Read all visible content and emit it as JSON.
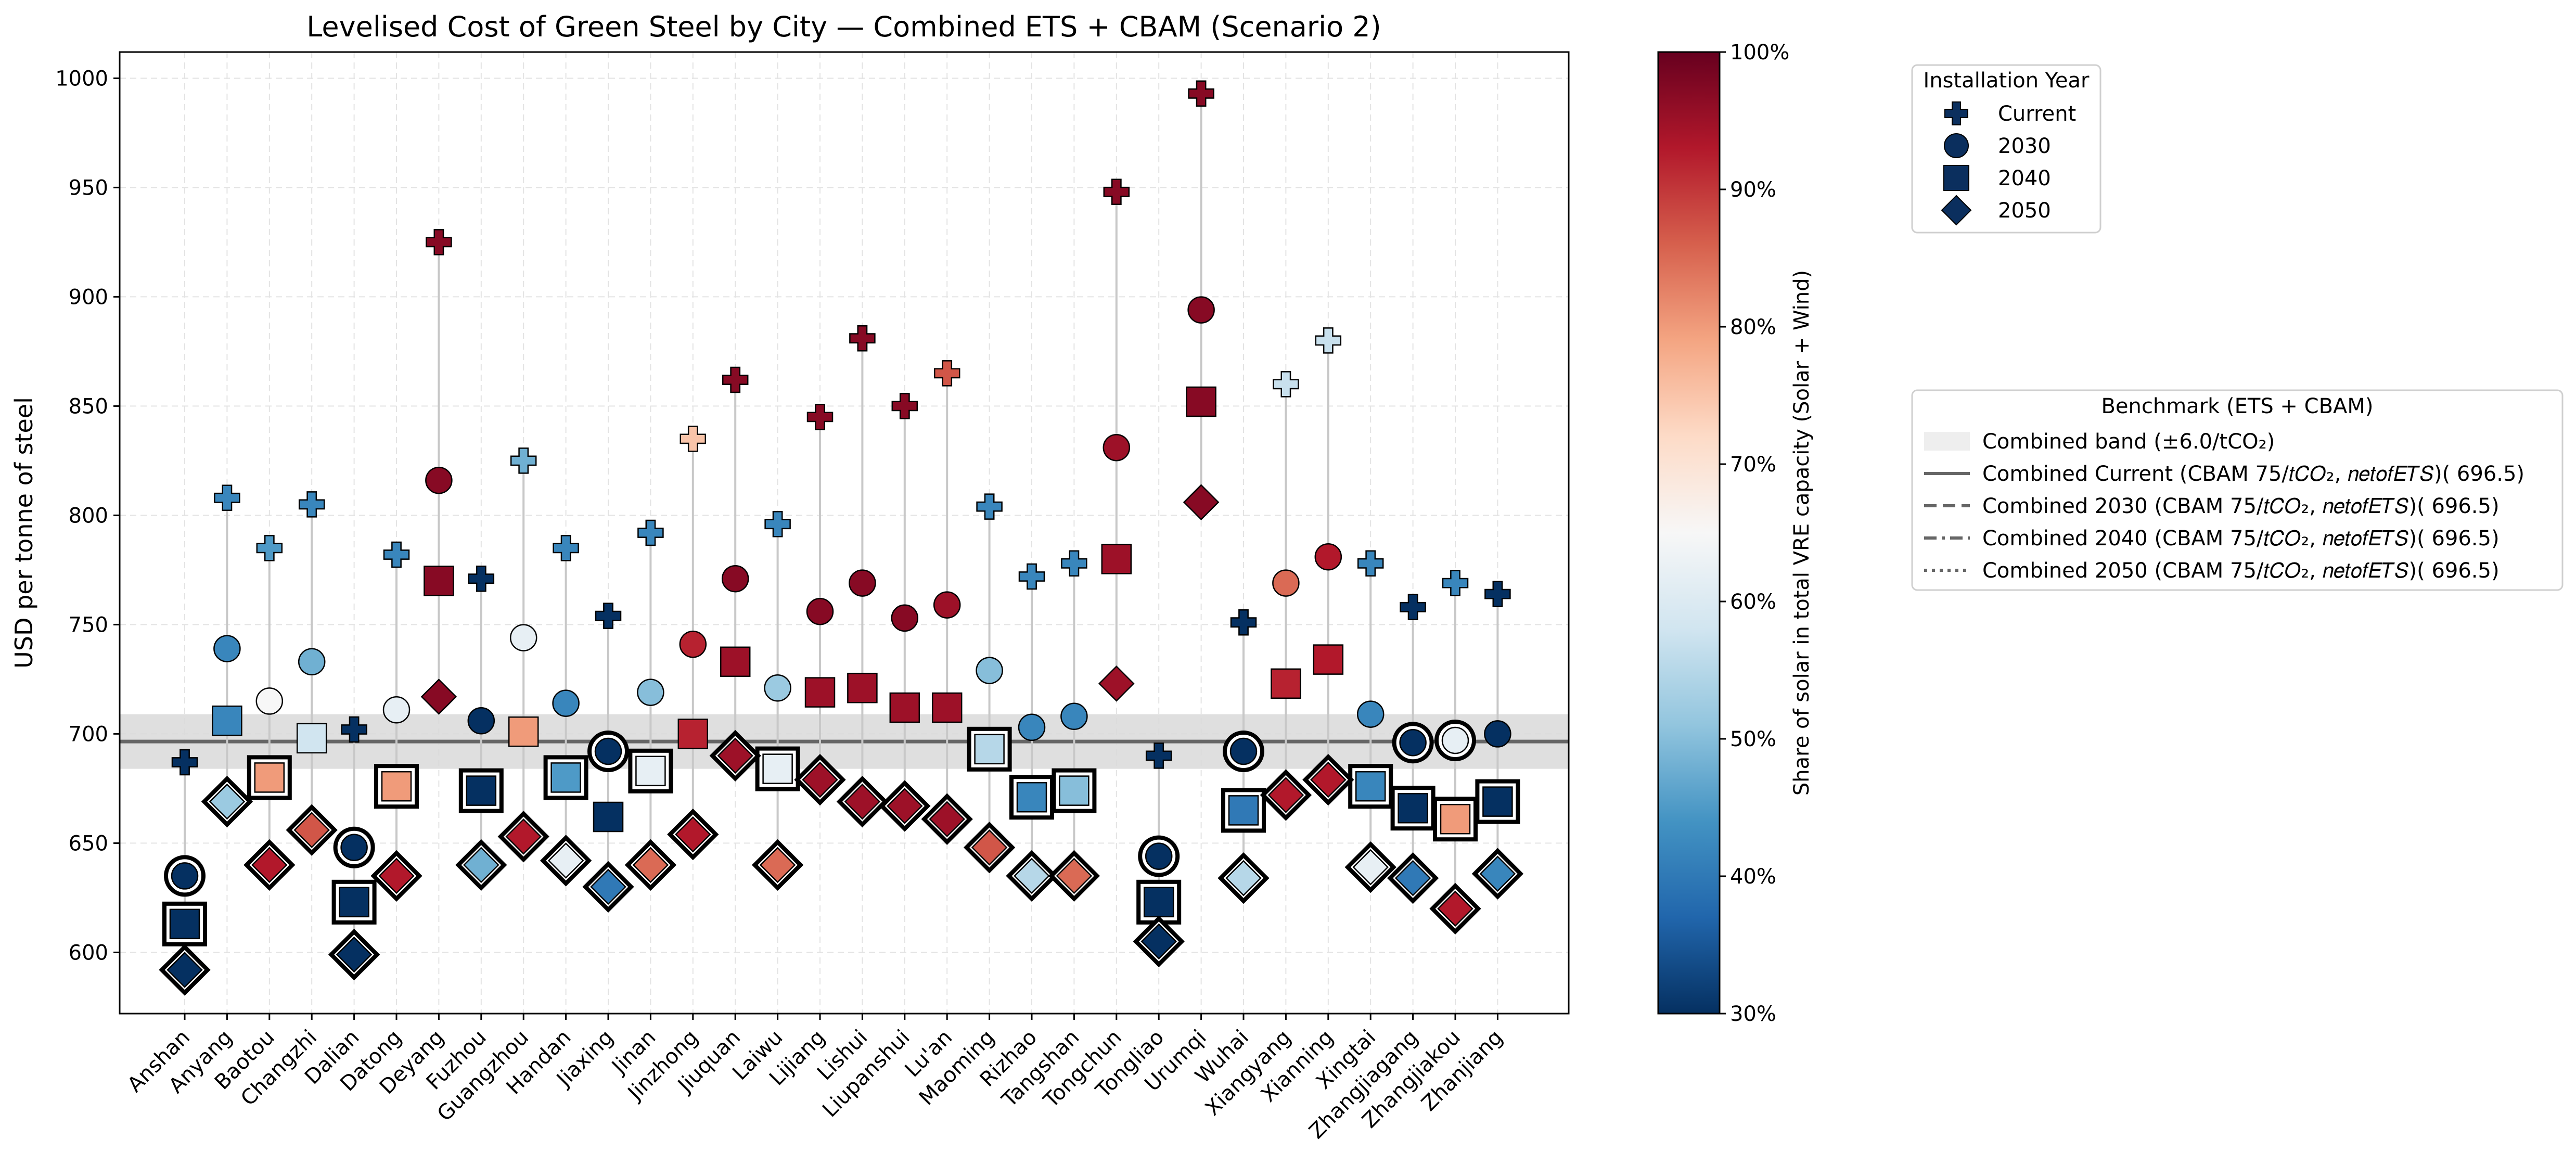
{
  "chart_data": {
    "type": "scatter",
    "title": "Levelised Cost of Green Steel by City — Combined ETS + CBAM (Scenario 2)",
    "xlabel": "",
    "ylabel": "USD per tonne of steel",
    "ylim": [
      572,
      1012
    ],
    "yticks": [
      600,
      650,
      700,
      750,
      800,
      850,
      900,
      950,
      1000
    ],
    "grid": true,
    "categories": [
      "Anshan",
      "Anyang",
      "Baotou",
      "Changzhi",
      "Dalian",
      "Datong",
      "Deyang",
      "Fuzhou",
      "Guangzhou",
      "Handan",
      "Jiaxing",
      "Jinan",
      "Jinzhong",
      "Jiuquan",
      "Laiwu",
      "Lijiang",
      "Lishui",
      "Liupanshui",
      "Lu'an",
      "Maoming",
      "Rizhao",
      "Tangshan",
      "Tongchun",
      "Tongliao",
      "Urumqi",
      "Wuhai",
      "Xiangyang",
      "Xianning",
      "Xingtai",
      "Zhangjiagang",
      "Zhangjiakou",
      "Zhanjiang"
    ],
    "series": [
      {
        "name": "Current",
        "marker": "plus",
        "values": [
          687,
          808,
          785,
          805,
          702,
          782,
          925,
          771,
          825,
          785,
          754,
          792,
          835,
          862,
          796,
          845,
          881,
          850,
          865,
          804,
          772,
          778,
          948,
          690,
          993,
          751,
          860,
          880,
          778,
          758,
          769,
          764
        ],
        "solar_share": [
          30,
          42,
          45,
          42,
          30,
          42,
          97,
          30,
          48,
          42,
          30,
          42,
          75,
          97,
          42,
          97,
          97,
          97,
          87,
          42,
          42,
          42,
          97,
          30,
          97,
          30,
          57,
          57,
          42,
          30,
          42,
          30
        ]
      },
      {
        "name": "2030",
        "marker": "circle",
        "values": [
          635,
          739,
          715,
          733,
          648,
          711,
          816,
          706,
          744,
          714,
          692,
          719,
          741,
          771,
          721,
          756,
          769,
          753,
          759,
          729,
          703,
          708,
          831,
          644,
          894,
          692,
          769,
          781,
          709,
          696,
          697,
          700
        ],
        "solar_share": [
          30,
          42,
          65,
          48,
          30,
          62,
          97,
          30,
          62,
          42,
          30,
          50,
          92,
          97,
          52,
          97,
          97,
          97,
          95,
          50,
          42,
          42,
          95,
          30,
          97,
          30,
          85,
          93,
          42,
          30,
          62,
          30
        ]
      },
      {
        "name": "2040",
        "marker": "square",
        "values": [
          613,
          706,
          680,
          698,
          623,
          676,
          770,
          674,
          701,
          680,
          662,
          683,
          700,
          733,
          684,
          719,
          721,
          712,
          712,
          693,
          671,
          674,
          780,
          623,
          852,
          665,
          723,
          734,
          676,
          666,
          661,
          669
        ],
        "solar_share": [
          30,
          42,
          80,
          58,
          30,
          80,
          97,
          30,
          80,
          45,
          30,
          62,
          92,
          95,
          62,
          95,
          95,
          95,
          95,
          55,
          42,
          50,
          95,
          30,
          97,
          40,
          92,
          93,
          42,
          30,
          80,
          30
        ]
      },
      {
        "name": "2050",
        "marker": "diamond",
        "values": [
          592,
          669,
          640,
          656,
          599,
          635,
          717,
          640,
          653,
          642,
          630,
          640,
          654,
          690,
          640,
          679,
          669,
          667,
          661,
          648,
          635,
          635,
          723,
          605,
          806,
          634,
          672,
          679,
          639,
          634,
          620,
          636
        ],
        "solar_share": [
          30,
          52,
          93,
          87,
          30,
          93,
          97,
          48,
          93,
          62,
          40,
          85,
          93,
          95,
          85,
          95,
          95,
          95,
          95,
          87,
          55,
          85,
          95,
          30,
          97,
          55,
          93,
          93,
          62,
          40,
          93,
          42
        ]
      }
    ],
    "highlighted": {
      "2030": [
        0,
        4,
        10,
        23,
        25,
        29,
        30
      ],
      "2040": [
        0,
        2,
        4,
        5,
        7,
        9,
        11,
        14,
        19,
        20,
        21,
        23,
        25,
        28,
        29,
        30,
        31
      ],
      "2050": [
        0,
        1,
        2,
        3,
        4,
        5,
        7,
        8,
        9,
        10,
        11,
        12,
        13,
        14,
        15,
        16,
        17,
        18,
        19,
        20,
        21,
        23,
        25,
        26,
        27,
        28,
        29,
        30,
        31
      ]
    },
    "benchmark": {
      "value": 696.5,
      "band": [
        684,
        709
      ]
    },
    "colorbar": {
      "label": "Share of solar in total VRE capacity (Solar + Wind)",
      "range": [
        30,
        100
      ],
      "ticks": [
        "30%",
        "40%",
        "50%",
        "60%",
        "70%",
        "80%",
        "90%",
        "100%"
      ]
    },
    "legend_markers": {
      "title": "Installation Year",
      "placement": "top-right, outside plot",
      "items": [
        "Current",
        "2030",
        "2040",
        "2050"
      ]
    },
    "legend_benchmark": {
      "title": "Benchmark (ETS + CBAM)",
      "placement": "right, outside plot",
      "items": [
        {
          "label": "Combined band (±6.0/tCO₂)",
          "style": "band"
        },
        {
          "label": "Combined Current (CBAM 75/𝑡𝐶𝑂₂, 𝑛𝑒𝑡𝑜𝑓𝐸𝑇𝑆)( 696.5)",
          "style": "solid"
        },
        {
          "label": "Combined 2030 (CBAM 75/𝑡𝐶𝑂₂, 𝑛𝑒𝑡𝑜𝑓𝐸𝑇𝑆)( 696.5)",
          "style": "dashed"
        },
        {
          "label": "Combined 2040 (CBAM 75/𝑡𝐶𝑂₂, 𝑛𝑒𝑡𝑜𝑓𝐸𝑇𝑆)( 696.5)",
          "style": "dashdot"
        },
        {
          "label": "Combined 2050 (CBAM 75/𝑡𝐶𝑂₂, 𝑛𝑒𝑡𝑜𝑓𝐸𝑇𝑆)( 696.5)",
          "style": "dotted"
        }
      ]
    },
    "colors": {
      "marker_edge": "#000000",
      "stem": "#c8c8c8",
      "band": "#d9d9d9",
      "benchmark_line": "#666666",
      "grid": "#e3e3e3",
      "legend_marker": "#0b2f5e"
    }
  }
}
